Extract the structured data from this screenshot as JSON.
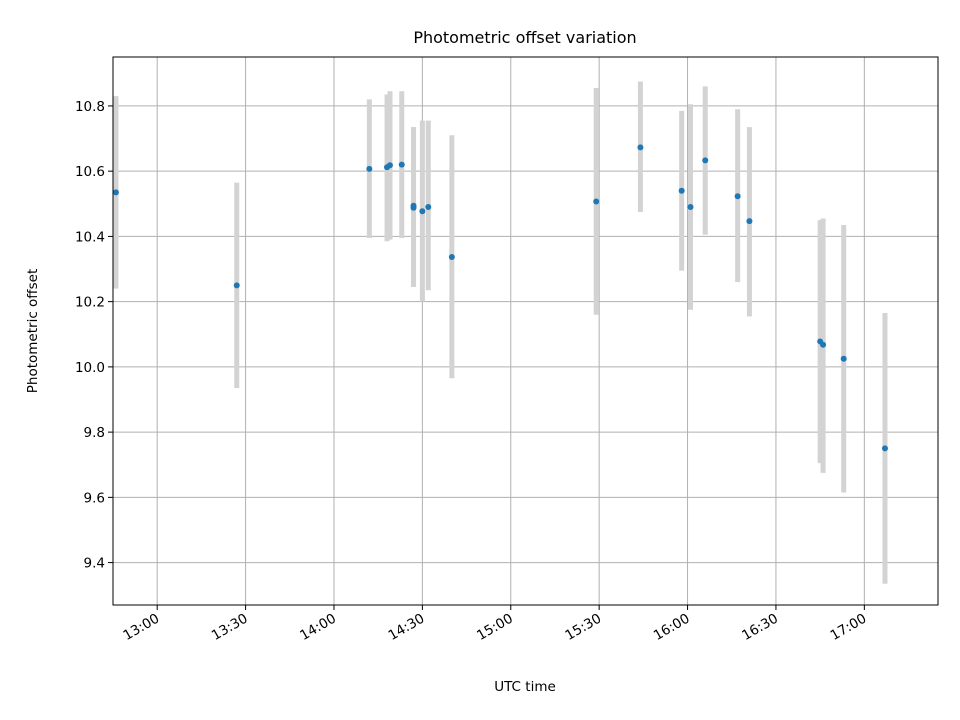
{
  "chart_data": {
    "type": "scatter",
    "title": "Photometric offset variation",
    "xlabel": "UTC time",
    "ylabel": "Photometric offset",
    "grid": true,
    "x_axis": {
      "kind": "time",
      "range": [
        "12:45",
        "17:25"
      ],
      "ticks": [
        "13:00",
        "13:30",
        "14:00",
        "14:30",
        "15:00",
        "15:30",
        "16:00",
        "16:30",
        "17:00"
      ]
    },
    "y_axis": {
      "range": [
        9.27,
        10.95
      ],
      "ticks": [
        "9.4",
        "9.6",
        "9.8",
        "10.0",
        "10.2",
        "10.4",
        "10.6",
        "10.8"
      ]
    },
    "colors": {
      "point": "#1f77b4",
      "errorbar": "#d3d3d3"
    },
    "points": [
      {
        "time": "12:46",
        "y": 10.535,
        "ylow": 10.24,
        "yhigh": 10.83
      },
      {
        "time": "13:27",
        "y": 10.25,
        "ylow": 9.935,
        "yhigh": 10.565
      },
      {
        "time": "14:12",
        "y": 10.607,
        "ylow": 10.395,
        "yhigh": 10.82
      },
      {
        "time": "14:18",
        "y": 10.612,
        "ylow": 10.385,
        "yhigh": 10.835
      },
      {
        "time": "14:19",
        "y": 10.618,
        "ylow": 10.39,
        "yhigh": 10.845
      },
      {
        "time": "14:23",
        "y": 10.62,
        "ylow": 10.395,
        "yhigh": 10.845
      },
      {
        "time": "14:27",
        "y": 10.494,
        "ylow": 10.245,
        "yhigh": 10.735
      },
      {
        "time": "14:27",
        "y": 10.488,
        "ylow": 10.245,
        "yhigh": 10.735
      },
      {
        "time": "14:30",
        "y": 10.477,
        "ylow": 10.2,
        "yhigh": 10.755
      },
      {
        "time": "14:32",
        "y": 10.49,
        "ylow": 10.235,
        "yhigh": 10.755
      },
      {
        "time": "14:40",
        "y": 10.337,
        "ylow": 9.965,
        "yhigh": 10.71
      },
      {
        "time": "15:29",
        "y": 10.507,
        "ylow": 10.16,
        "yhigh": 10.855
      },
      {
        "time": "15:44",
        "y": 10.673,
        "ylow": 10.475,
        "yhigh": 10.875
      },
      {
        "time": "15:58",
        "y": 10.54,
        "ylow": 10.295,
        "yhigh": 10.785
      },
      {
        "time": "16:01",
        "y": 10.49,
        "ylow": 10.175,
        "yhigh": 10.805
      },
      {
        "time": "16:06",
        "y": 10.633,
        "ylow": 10.405,
        "yhigh": 10.86
      },
      {
        "time": "16:17",
        "y": 10.523,
        "ylow": 10.26,
        "yhigh": 10.79
      },
      {
        "time": "16:21",
        "y": 10.447,
        "ylow": 10.155,
        "yhigh": 10.735
      },
      {
        "time": "16:45",
        "y": 10.078,
        "ylow": 9.705,
        "yhigh": 10.45
      },
      {
        "time": "16:46",
        "y": 10.068,
        "ylow": 9.675,
        "yhigh": 10.455
      },
      {
        "time": "16:53",
        "y": 10.025,
        "ylow": 9.615,
        "yhigh": 10.435
      },
      {
        "time": "17:07",
        "y": 9.75,
        "ylow": 9.335,
        "yhigh": 10.165
      }
    ]
  }
}
